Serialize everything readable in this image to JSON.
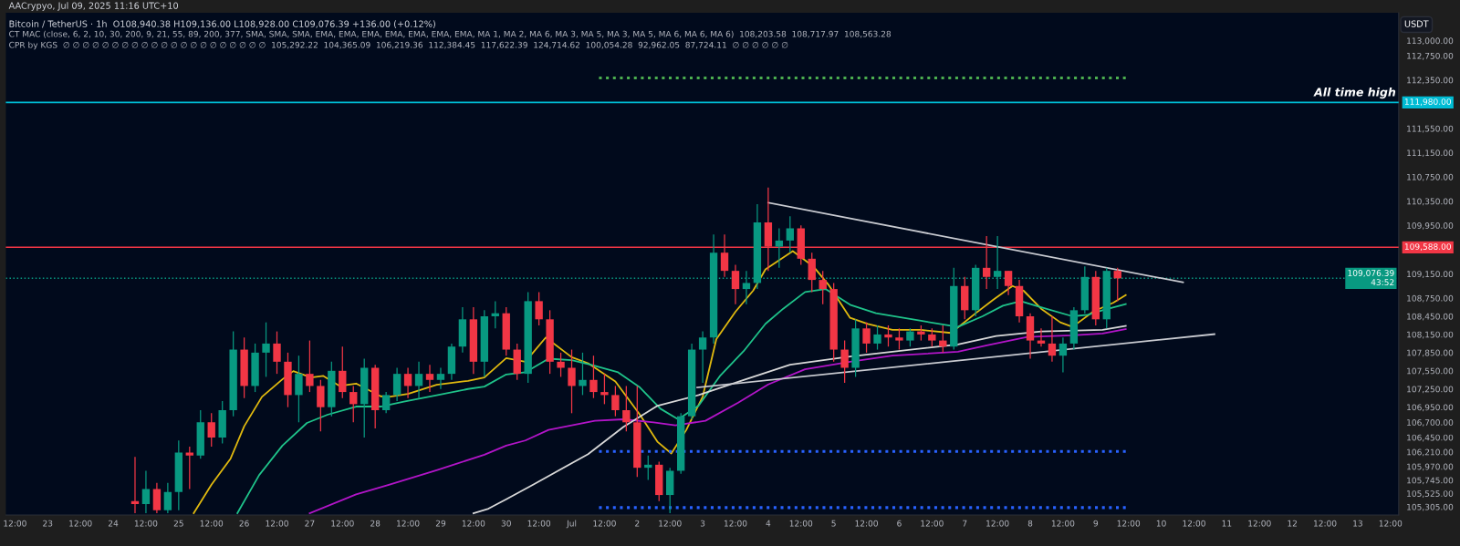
{
  "chart_data": {
    "type": "candlestick",
    "title": "Bitcoin / TetherUS · 1h  O108,940.38 H109,136.00 L108,928.00 C109,076.39 +136.00 (+0.12%)",
    "ylabel": "USDT",
    "annotations": [
      "AACrypyo, Jul 09, 2025 11:16 UTC+10",
      "CT MAC (close, 6, 2, 10, 30, 200, 9, 21, 55, 89, 200, 377, SMA, SMA, SMA, EMA, EMA, EMA, EMA, EMA, EMA, EMA, MA 1, MA 2, MA 6, MA 3, MA 5, MA 3, MA 5, MA 6, MA 6, MA 6)  108,203.58  108,717.97  108,563.28",
      "CPR by KGS  ∅ ∅ ∅ ∅ ∅ ∅ ∅ ∅ ∅ ∅ ∅ ∅ ∅ ∅ ∅ ∅ ∅ ∅ ∅ ∅ ∅  105,292.22  104,365.09  106,219.36  112,384.45  117,622.39  124,714.62  100,054.28  92,962.05  87,724.11  ∅ ∅ ∅ ∅ ∅ ∅",
      {
        "text": "All time high",
        "x": "2025-07-13T14:00",
        "y": 111980
      }
    ],
    "x": [
      "2025-06-24T08:00",
      "2025-06-24T12:00",
      "2025-06-24T16:00",
      "2025-06-24T20:00",
      "2025-06-25T00:00",
      "2025-06-25T04:00",
      "2025-06-25T08:00",
      "2025-06-25T12:00",
      "2025-06-25T16:00",
      "2025-06-25T20:00",
      "2025-06-26T00:00",
      "2025-06-26T04:00",
      "2025-06-26T08:00",
      "2025-06-26T12:00",
      "2025-06-26T16:00",
      "2025-06-26T20:00",
      "2025-06-27T00:00",
      "2025-06-27T04:00",
      "2025-06-27T08:00",
      "2025-06-27T12:00",
      "2025-06-27T16:00",
      "2025-06-27T20:00",
      "2025-06-28T00:00",
      "2025-06-28T04:00",
      "2025-06-28T08:00",
      "2025-06-28T12:00",
      "2025-06-28T16:00",
      "2025-06-28T20:00",
      "2025-06-29T00:00",
      "2025-06-29T04:00",
      "2025-06-29T08:00",
      "2025-06-29T12:00",
      "2025-06-29T16:00",
      "2025-06-29T20:00",
      "2025-06-30T00:00",
      "2025-06-30T04:00",
      "2025-06-30T08:00",
      "2025-06-30T12:00",
      "2025-06-30T16:00",
      "2025-06-30T20:00",
      "2025-07-01T00:00",
      "2025-07-01T04:00",
      "2025-07-01T08:00",
      "2025-07-01T12:00",
      "2025-07-01T16:00",
      "2025-07-01T20:00",
      "2025-07-02T00:00",
      "2025-07-02T04:00",
      "2025-07-02T08:00",
      "2025-07-02T12:00",
      "2025-07-02T16:00",
      "2025-07-02T20:00",
      "2025-07-03T00:00",
      "2025-07-03T04:00",
      "2025-07-03T08:00",
      "2025-07-03T12:00",
      "2025-07-03T16:00",
      "2025-07-03T20:00",
      "2025-07-04T00:00",
      "2025-07-04T04:00",
      "2025-07-04T08:00",
      "2025-07-04T12:00",
      "2025-07-04T16:00",
      "2025-07-04T20:00",
      "2025-07-05T00:00",
      "2025-07-05T04:00",
      "2025-07-05T08:00",
      "2025-07-05T12:00",
      "2025-07-05T16:00",
      "2025-07-05T20:00",
      "2025-07-06T00:00",
      "2025-07-06T04:00",
      "2025-07-06T08:00",
      "2025-07-06T12:00",
      "2025-07-06T16:00",
      "2025-07-06T20:00",
      "2025-07-07T00:00",
      "2025-07-07T04:00",
      "2025-07-07T08:00",
      "2025-07-07T12:00",
      "2025-07-07T16:00",
      "2025-07-07T20:00",
      "2025-07-08T00:00",
      "2025-07-08T04:00",
      "2025-07-08T08:00",
      "2025-07-08T12:00",
      "2025-07-08T16:00",
      "2025-07-08T20:00",
      "2025-07-09T00:00",
      "2025-07-09T04:00",
      "2025-07-09T08:00"
    ],
    "ohlc": [
      [
        105400,
        106130,
        105200,
        105350
      ],
      [
        105350,
        105900,
        105200,
        105600
      ],
      [
        105600,
        105700,
        105200,
        105250
      ],
      [
        105250,
        105700,
        105200,
        105550
      ],
      [
        105550,
        106400,
        105250,
        106200
      ],
      [
        106200,
        106300,
        105600,
        106150
      ],
      [
        106150,
        106900,
        106100,
        106700
      ],
      [
        106700,
        106850,
        106300,
        106450
      ],
      [
        106450,
        107050,
        106350,
        106900
      ],
      [
        106900,
        108200,
        106800,
        107900
      ],
      [
        107900,
        108100,
        107100,
        107300
      ],
      [
        107300,
        108000,
        107200,
        107850
      ],
      [
        107850,
        108350,
        107450,
        108000
      ],
      [
        108000,
        108200,
        107500,
        107700
      ],
      [
        107700,
        107850,
        106950,
        107150
      ],
      [
        107150,
        107800,
        106700,
        107500
      ],
      [
        107500,
        108050,
        107200,
        107300
      ],
      [
        107300,
        107400,
        106550,
        106950
      ],
      [
        106950,
        107700,
        106800,
        107550
      ],
      [
        107550,
        107950,
        107100,
        107200
      ],
      [
        107200,
        107300,
        106700,
        107000
      ],
      [
        107000,
        107750,
        106450,
        107600
      ],
      [
        107600,
        107650,
        106600,
        106900
      ],
      [
        106900,
        107200,
        106850,
        107150
      ],
      [
        107150,
        107600,
        107050,
        107500
      ],
      [
        107500,
        107600,
        107100,
        107300
      ],
      [
        107300,
        107700,
        107100,
        107500
      ],
      [
        107500,
        107650,
        107200,
        107400
      ],
      [
        107400,
        107600,
        107250,
        107500
      ],
      [
        107500,
        108000,
        107400,
        107950
      ],
      [
        107950,
        108600,
        107850,
        108400
      ],
      [
        108400,
        108600,
        107500,
        107700
      ],
      [
        107700,
        108550,
        107450,
        108450
      ],
      [
        108450,
        108700,
        108250,
        108500
      ],
      [
        108500,
        108600,
        107800,
        107900
      ],
      [
        107900,
        108000,
        107400,
        107500
      ],
      [
        107500,
        108850,
        107350,
        108700
      ],
      [
        108700,
        108850,
        108300,
        108400
      ],
      [
        108400,
        108550,
        107500,
        107700
      ],
      [
        107700,
        107850,
        107450,
        107600
      ],
      [
        107600,
        107900,
        106850,
        107300
      ],
      [
        107300,
        107850,
        107150,
        107400
      ],
      [
        107400,
        107800,
        107100,
        107200
      ],
      [
        107200,
        107500,
        107000,
        107150
      ],
      [
        107150,
        107300,
        106800,
        106900
      ],
      [
        106900,
        107300,
        106550,
        106700
      ],
      [
        106700,
        107300,
        105800,
        105950
      ],
      [
        105950,
        106150,
        105750,
        106000
      ],
      [
        106000,
        106050,
        105400,
        105500
      ],
      [
        105500,
        105950,
        105200,
        105900
      ],
      [
        105900,
        106850,
        105850,
        106800
      ],
      [
        106800,
        108000,
        106750,
        107900
      ],
      [
        107900,
        108200,
        107350,
        108100
      ],
      [
        108100,
        109800,
        108000,
        109500
      ],
      [
        109500,
        109800,
        109100,
        109200
      ],
      [
        109200,
        109300,
        108650,
        108900
      ],
      [
        108900,
        109200,
        108650,
        109000
      ],
      [
        109000,
        110300,
        108900,
        110000
      ],
      [
        110000,
        110575,
        109200,
        109600
      ],
      [
        109600,
        109900,
        109250,
        109700
      ],
      [
        109700,
        110100,
        109500,
        109900
      ],
      [
        109900,
        109950,
        109300,
        109400
      ],
      [
        109400,
        109500,
        108850,
        109050
      ],
      [
        109050,
        109200,
        108650,
        108900
      ],
      [
        108900,
        109000,
        107700,
        107900
      ],
      [
        107900,
        108050,
        107350,
        107600
      ],
      [
        107600,
        108400,
        107450,
        108250
      ],
      [
        108250,
        108350,
        107850,
        108000
      ],
      [
        108000,
        108300,
        107900,
        108150
      ],
      [
        108150,
        108300,
        107950,
        108100
      ],
      [
        108100,
        108250,
        107900,
        108050
      ],
      [
        108050,
        108250,
        107950,
        108200
      ],
      [
        108200,
        108300,
        108050,
        108150
      ],
      [
        108150,
        108250,
        107950,
        108050
      ],
      [
        108050,
        108300,
        107850,
        107950
      ],
      [
        107950,
        109250,
        107900,
        108950
      ],
      [
        108950,
        109100,
        108400,
        108550
      ],
      [
        108550,
        109300,
        108450,
        109250
      ],
      [
        109250,
        109775,
        108900,
        109100
      ],
      [
        109100,
        109775,
        108900,
        109200
      ],
      [
        109200,
        109200,
        108800,
        108950
      ],
      [
        108950,
        109050,
        108350,
        108450
      ],
      [
        108450,
        108500,
        107750,
        108050
      ],
      [
        108050,
        108250,
        107950,
        108000
      ],
      [
        108000,
        108450,
        107700,
        107800
      ],
      [
        107800,
        108100,
        107525,
        108000
      ],
      [
        108000,
        108600,
        107900,
        108550
      ],
      [
        108550,
        109275,
        108500,
        109100
      ],
      [
        109100,
        109200,
        108300,
        108400
      ],
      [
        108400,
        109250,
        108250,
        109200
      ],
      [
        109200,
        109250,
        108700,
        109076.39
      ]
    ],
    "colors": [
      "#f23645",
      "#089981",
      "#f23645",
      "#089981",
      "#089981",
      "#f23645",
      "#089981",
      "#f23645",
      "#089981",
      "#089981",
      "#f23645",
      "#089981",
      "#089981",
      "#f23645",
      "#f23645",
      "#089981",
      "#f23645",
      "#f23645",
      "#089981",
      "#f23645",
      "#f23645",
      "#089981",
      "#f23645",
      "#089981",
      "#089981",
      "#f23645",
      "#089981",
      "#f23645",
      "#089981",
      "#089981",
      "#089981",
      "#f23645",
      "#089981",
      "#089981",
      "#f23645",
      "#f23645",
      "#089981",
      "#f23645",
      "#f23645",
      "#f23645",
      "#f23645",
      "#089981",
      "#f23645",
      "#f23645",
      "#f23645",
      "#f23645",
      "#f23645",
      "#089981",
      "#f23645",
      "#089981",
      "#089981",
      "#089981",
      "#089981",
      "#089981",
      "#f23645",
      "#f23645",
      "#089981",
      "#089981",
      "#f23645",
      "#089981",
      "#089981",
      "#f23645",
      "#f23645",
      "#f23645",
      "#f23645",
      "#f23645",
      "#089981",
      "#f23645",
      "#089981",
      "#f23645",
      "#f23645",
      "#089981",
      "#f23645",
      "#f23645",
      "#f23645",
      "#089981",
      "#f23645",
      "#089981",
      "#f23645",
      "#089981",
      "#f23645",
      "#f23645",
      "#f23645",
      "#f23645",
      "#f23645",
      "#089981",
      "#089981",
      "#089981",
      "#f23645",
      "#089981",
      "#f23645"
    ],
    "series": [
      {
        "type": "line",
        "color": "#e0b90f",
        "x": [
          "2025-06-25T05:30",
          "2025-06-25T12:00",
          "2025-06-25T19:00",
          "2025-06-26T00:00",
          "2025-06-26T06:30",
          "2025-06-26T14:00",
          "2025-06-26T18:00",
          "2025-06-27T00:30",
          "2025-06-27T05:00",
          "2025-06-27T11:00",
          "2025-06-27T17:00",
          "2025-06-28T02:00",
          "2025-06-28T05:00",
          "2025-06-28T12:00",
          "2025-06-28T22:30",
          "2025-06-29T10:00",
          "2025-06-29T16:00",
          "2025-06-30T00:00",
          "2025-06-30T07:00",
          "2025-06-30T14:30",
          "2025-07-01T00:00",
          "2025-07-01T06:00",
          "2025-07-01T16:00",
          "2025-07-02T01:00",
          "2025-07-02T07:30",
          "2025-07-02T12:30",
          "2025-07-02T18:00",
          "2025-07-03T00:00",
          "2025-07-03T05:00",
          "2025-07-03T12:00",
          "2025-07-03T18:30",
          "2025-07-03T23:00",
          "2025-07-04T09:00",
          "2025-07-04T16:30",
          "2025-07-04T22:00",
          "2025-07-05T06:00",
          "2025-07-05T12:30",
          "2025-07-05T21:30",
          "2025-07-06T08:00",
          "2025-07-06T19:00",
          "2025-07-07T04:00",
          "2025-07-07T10:30",
          "2025-07-07T17:30",
          "2025-07-07T21:30",
          "2025-07-08T04:00",
          "2025-07-08T11:00",
          "2025-07-08T15:30",
          "2025-07-08T23:00",
          "2025-07-09T06:30",
          "2025-07-09T11:00"
        ],
        "values": [
          105200,
          105670,
          106100,
          106635,
          107120,
          107410,
          107545,
          107440,
          107465,
          107300,
          107340,
          107130,
          107120,
          107170,
          107320,
          107385,
          107440,
          107760,
          107700,
          108100,
          107775,
          107675,
          107375,
          106825,
          106375,
          106185,
          106575,
          107125,
          108075,
          108525,
          108875,
          109225,
          109525,
          109275,
          108975,
          108425,
          108325,
          108225,
          108225,
          108175,
          108500,
          108725,
          108950,
          108875,
          108575,
          108350,
          108275,
          108525,
          108675,
          108800
        ]
      },
      {
        "type": "line",
        "color": "#1fc38a",
        "x": [
          "2025-06-25T21:30",
          "2025-06-26T05:30",
          "2025-06-26T14:00",
          "2025-06-26T23:00",
          "2025-06-27T06:30",
          "2025-06-27T17:00",
          "2025-06-28T02:00",
          "2025-06-28T10:30",
          "2025-06-28T22:30",
          "2025-06-29T10:00",
          "2025-06-29T16:00",
          "2025-06-30T00:00",
          "2025-06-30T07:00",
          "2025-06-30T15:30",
          "2025-07-01T00:00",
          "2025-07-01T07:00",
          "2025-07-01T17:00",
          "2025-07-02T01:00",
          "2025-07-02T08:30",
          "2025-07-02T15:00",
          "2025-07-02T22:30",
          "2025-07-03T06:30",
          "2025-07-03T15:00",
          "2025-07-03T23:00",
          "2025-07-04T05:30",
          "2025-07-04T13:30",
          "2025-07-04T21:00",
          "2025-07-05T06:00",
          "2025-07-05T15:30",
          "2025-07-06T08:00",
          "2025-07-06T21:30",
          "2025-07-07T06:30",
          "2025-07-07T14:00",
          "2025-07-07T20:30",
          "2025-07-08T04:00",
          "2025-07-08T15:30",
          "2025-07-08T21:00",
          "2025-07-09T02:30",
          "2025-07-09T11:00"
        ],
        "values": [
          105200,
          105830,
          106315,
          106690,
          106825,
          106960,
          106960,
          107040,
          107145,
          107250,
          107290,
          107490,
          107525,
          107750,
          107725,
          107650,
          107525,
          107275,
          106925,
          106750,
          106975,
          107475,
          107875,
          108325,
          108575,
          108850,
          108900,
          108640,
          108500,
          108375,
          108275,
          108450,
          108625,
          108700,
          108600,
          108450,
          108475,
          108550,
          108650
        ]
      },
      {
        "type": "line",
        "color": "#b215c8",
        "x": [
          "2025-06-27T00:00",
          "2025-06-27T17:00",
          "2025-06-28T05:00",
          "2025-06-28T22:30",
          "2025-06-29T16:00",
          "2025-06-30T00:00",
          "2025-06-30T07:00",
          "2025-06-30T15:30",
          "2025-07-01T08:30",
          "2025-07-01T19:00",
          "2025-07-02T06:00",
          "2025-07-02T14:00",
          "2025-07-03T01:00",
          "2025-07-03T13:00",
          "2025-07-04T00:00",
          "2025-07-04T13:30",
          "2025-07-05T06:00",
          "2025-07-05T21:30",
          "2025-07-06T21:30",
          "2025-07-07T08:30",
          "2025-07-07T23:00",
          "2025-07-08T15:30",
          "2025-07-09T02:30",
          "2025-07-09T11:00"
        ],
        "values": [
          105200,
          105510,
          105670,
          105910,
          106165,
          106315,
          106400,
          106575,
          106725,
          106750,
          106700,
          106650,
          106725,
          107025,
          107325,
          107575,
          107700,
          107800,
          107865,
          107975,
          108110,
          108135,
          108165,
          108240
        ]
      },
      {
        "type": "line",
        "color": "#d8d8d8",
        "x": [
          "2025-06-29T12:00",
          "2025-06-29T17:30",
          "2025-06-30T00:00",
          "2025-06-30T10:00",
          "2025-07-01T06:00",
          "2025-07-01T19:00",
          "2025-07-02T07:30",
          "2025-07-02T22:30",
          "2025-07-03T15:00",
          "2025-07-04T08:00",
          "2025-07-05T06:00",
          "2025-07-05T21:30",
          "2025-07-06T21:30",
          "2025-07-07T11:30",
          "2025-07-08T04:00",
          "2025-07-09T02:30",
          "2025-07-09T11:00"
        ],
        "values": [
          105200,
          105275,
          105430,
          105675,
          106175,
          106625,
          106975,
          107150,
          107400,
          107650,
          107785,
          107865,
          107985,
          108125,
          108200,
          108225,
          108290
        ]
      },
      {
        "type": "line",
        "color": "#c8cad0",
        "x": [
          "2025-07-04T00:00",
          "2025-07-10T08:00"
        ],
        "values": [
          110325,
          109010
        ]
      },
      {
        "type": "line",
        "color": "#c8cad0",
        "x": [
          "2025-07-02T22:00",
          "2025-07-10T19:30"
        ],
        "values": [
          107275,
          108155
        ]
      },
      {
        "type": "line",
        "line_style": "dotted",
        "color": "#4caf50",
        "x": [
          "2025-07-01T10:00",
          "2025-07-09T11:00"
        ],
        "values": [
          112384.45,
          112384.45
        ]
      },
      {
        "type": "line",
        "line_style": "dotted",
        "color": "#2962ff",
        "x": [
          "2025-07-01T10:00",
          "2025-07-09T11:00"
        ],
        "values": [
          106219.36,
          106219.36
        ]
      },
      {
        "type": "line",
        "line_style": "dotted",
        "color": "#2962ff",
        "x": [
          "2025-07-01T10:00",
          "2025-07-09T11:00"
        ],
        "values": [
          105292.22,
          105292.22
        ]
      }
    ],
    "ref_lines": [
      {
        "axis": "y",
        "value": 111980,
        "label": "111,980.00",
        "color": "#00bcd4",
        "line_style": "solid"
      },
      {
        "axis": "y",
        "value": 109588,
        "label": "109,588.00",
        "color": "#f23645",
        "line_style": "solid"
      },
      {
        "axis": "y",
        "value": 109076.39,
        "label": "109,076.39\n43:52",
        "color": "#089981",
        "line_style": "dotted"
      }
    ],
    "xlim": [
      "2025-06-22T08:40",
      "2025-07-13T15:00"
    ],
    "xticks": [
      {
        "value": "2025-06-22T12:00",
        "label": "12:00"
      },
      {
        "value": "2025-06-23",
        "label": "23"
      },
      {
        "value": "2025-06-23T12:00",
        "label": "12:00"
      },
      {
        "value": "2025-06-24",
        "label": "24"
      },
      {
        "value": "2025-06-24T12:00",
        "label": "12:00"
      },
      {
        "value": "2025-06-25",
        "label": "25"
      },
      {
        "value": "2025-06-25T12:00",
        "label": "12:00"
      },
      {
        "value": "2025-06-26",
        "label": "26"
      },
      {
        "value": "2025-06-26T12:00",
        "label": "12:00"
      },
      {
        "value": "2025-06-27",
        "label": "27"
      },
      {
        "value": "2025-06-27T12:00",
        "label": "12:00"
      },
      {
        "value": "2025-06-28",
        "label": "28"
      },
      {
        "value": "2025-06-28T12:00",
        "label": "12:00"
      },
      {
        "value": "2025-06-29",
        "label": "29"
      },
      {
        "value": "2025-06-29T12:00",
        "label": "12:00"
      },
      {
        "value": "2025-06-30",
        "label": "30"
      },
      {
        "value": "2025-06-30T12:00",
        "label": "12:00"
      },
      {
        "value": "2025-07-01",
        "label": "Jul"
      },
      {
        "value": "2025-07-01T12:00",
        "label": "12:00"
      },
      {
        "value": "2025-07-02",
        "label": "2"
      },
      {
        "value": "2025-07-02T12:00",
        "label": "12:00"
      },
      {
        "value": "2025-07-03",
        "label": "3"
      },
      {
        "value": "2025-07-03T12:00",
        "label": "12:00"
      },
      {
        "value": "2025-07-04",
        "label": "4"
      },
      {
        "value": "2025-07-04T12:00",
        "label": "12:00"
      },
      {
        "value": "2025-07-05",
        "label": "5"
      },
      {
        "value": "2025-07-05T12:00",
        "label": "12:00"
      },
      {
        "value": "2025-07-06",
        "label": "6"
      },
      {
        "value": "2025-07-06T12:00",
        "label": "12:00"
      },
      {
        "value": "2025-07-07",
        "label": "7"
      },
      {
        "value": "2025-07-07T12:00",
        "label": "12:00"
      },
      {
        "value": "2025-07-08",
        "label": "8"
      },
      {
        "value": "2025-07-08T12:00",
        "label": "12:00"
      },
      {
        "value": "2025-07-09",
        "label": "9"
      },
      {
        "value": "2025-07-09T12:00",
        "label": "12:00"
      },
      {
        "value": "2025-07-10",
        "label": "10"
      },
      {
        "value": "2025-07-10T12:00",
        "label": "12:00"
      },
      {
        "value": "2025-07-11",
        "label": "11"
      },
      {
        "value": "2025-07-11T12:00",
        "label": "12:00"
      },
      {
        "value": "2025-07-12",
        "label": "12"
      },
      {
        "value": "2025-07-12T12:00",
        "label": "12:00"
      },
      {
        "value": "2025-07-13",
        "label": "13"
      },
      {
        "value": "2025-07-13T12:00",
        "label": "12:00"
      }
    ],
    "ylim": [
      105170,
      113460
    ],
    "yticks": [
      {
        "value": 113000,
        "label": "113,000.00"
      },
      {
        "value": 112750,
        "label": "112,750.00"
      },
      {
        "value": 112350,
        "label": "112,350.00"
      },
      {
        "value": 111550,
        "label": "111,550.00"
      },
      {
        "value": 111150,
        "label": "111,150.00"
      },
      {
        "value": 110750,
        "label": "110,750.00"
      },
      {
        "value": 110350,
        "label": "110,350.00"
      },
      {
        "value": 109950,
        "label": "109,950.00"
      },
      {
        "value": 109150,
        "label": "109,150.00"
      },
      {
        "value": 108750,
        "label": "108,750.00"
      },
      {
        "value": 108450,
        "label": "108,450.00"
      },
      {
        "value": 108150,
        "label": "108,150.00"
      },
      {
        "value": 107850,
        "label": "107,850.00"
      },
      {
        "value": 107550,
        "label": "107,550.00"
      },
      {
        "value": 107250,
        "label": "107,250.00"
      },
      {
        "value": 106950,
        "label": "106,950.00"
      },
      {
        "value": 106700,
        "label": "106,700.00"
      },
      {
        "value": 106450,
        "label": "106,450.00"
      },
      {
        "value": 106210,
        "label": "106,210.00"
      },
      {
        "value": 105970,
        "label": "105,970.00"
      },
      {
        "value": 105745,
        "label": "105,745.00"
      },
      {
        "value": 105525,
        "label": "105,525.00"
      },
      {
        "value": 105305,
        "label": "105,305.00"
      }
    ]
  }
}
